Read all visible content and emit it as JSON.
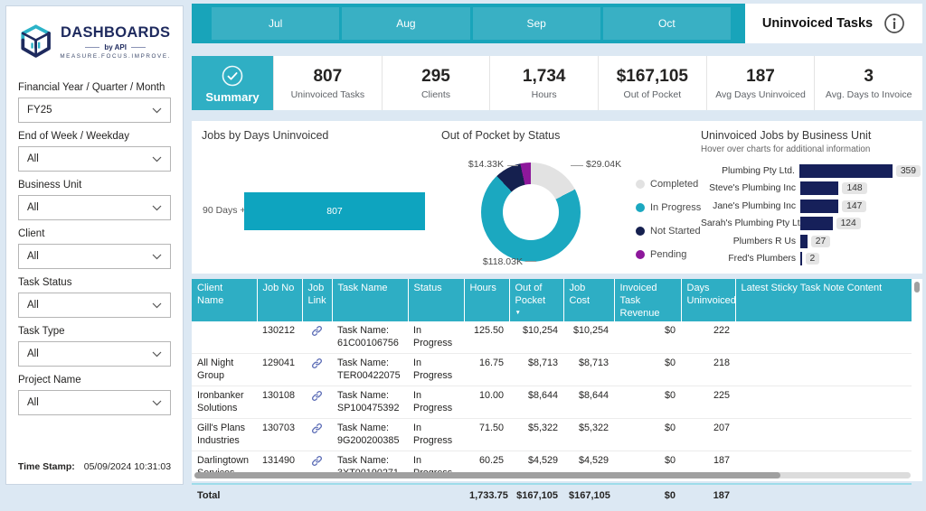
{
  "brand": {
    "title": "DASHBOARDS",
    "byline": "by API",
    "tagline": "MEASURE.FOCUS.IMPROVE."
  },
  "sidebar": {
    "filters": [
      {
        "label": "Financial Year / Quarter / Month",
        "value": "FY25"
      },
      {
        "label": "End of Week / Weekday",
        "value": "All"
      },
      {
        "label": "Business Unit",
        "value": "All"
      },
      {
        "label": "Client",
        "value": "All"
      },
      {
        "label": "Task Status",
        "value": "All"
      },
      {
        "label": "Task Type",
        "value": "All"
      },
      {
        "label": "Project Name",
        "value": "All"
      }
    ]
  },
  "timestamp": {
    "label": "Time Stamp:",
    "value": "05/09/2024 10:31:03"
  },
  "topbar": {
    "tabs": [
      "Jul",
      "Aug",
      "Sep",
      "Oct"
    ],
    "title": "Uninvoiced Tasks"
  },
  "kpis": {
    "summary_label": "Summary",
    "items": [
      {
        "value": "807",
        "label": "Uninvoiced Tasks"
      },
      {
        "value": "295",
        "label": "Clients"
      },
      {
        "value": "1,734",
        "label": "Hours"
      },
      {
        "value": "$167,105",
        "label": "Out of Pocket"
      },
      {
        "value": "187",
        "label": "Avg Days Uninvoiced"
      },
      {
        "value": "3",
        "label": "Avg. Days to Invoice"
      }
    ]
  },
  "chart_data": [
    {
      "type": "bar",
      "orientation": "horizontal",
      "title": "Jobs by Days Uninvoiced",
      "categories": [
        "90 Days +"
      ],
      "values": [
        807
      ],
      "bar_color": "#0ea4bf",
      "data_labels": "inside"
    },
    {
      "type": "donut",
      "title": "Out of Pocket by Status",
      "slices": [
        {
          "name": "Completed",
          "value": 29040,
          "display": "$29.04K",
          "color": "#e2e2e2"
        },
        {
          "name": "In Progress",
          "value": 118030,
          "display": "$118.03K",
          "color": "#1ba8c0"
        },
        {
          "name": "Not Started",
          "value": 14330,
          "display": "$14.33K",
          "color": "#15204f"
        },
        {
          "name": "Pending",
          "value": 5705,
          "display": "",
          "color": "#8d189b"
        }
      ],
      "legend_position": "right",
      "callouts_shown": [
        "$14.33K",
        "$29.04K",
        "$118.03K"
      ]
    },
    {
      "type": "bar",
      "orientation": "horizontal",
      "title": "Uninvoiced Jobs by Business Unit",
      "subtitle": "Hover over charts for additional information",
      "categories": [
        "Plumbing Pty Ltd.",
        "Steve's Plumbing Inc",
        "Jane's Plumbing Inc",
        "Sarah's Plumbing Pty Ltd.",
        "Plumbers R Us",
        "Fred's Plumbers"
      ],
      "values": [
        359,
        148,
        147,
        124,
        27,
        2
      ],
      "bar_color": "#16205a",
      "data_labels": "end-pill"
    }
  ],
  "table": {
    "columns": [
      "Client Name",
      "Job No",
      "Job Link",
      "Task Name",
      "Status",
      "Hours",
      "Out of Pocket",
      "Job Cost",
      "Invoiced Task Revenue",
      "Days Uninvoiced",
      "Latest Sticky Task Note Content"
    ],
    "sorted_column": "Out of Pocket",
    "rows": [
      {
        "client": "",
        "job_no": "130212",
        "job_link": true,
        "task": "Task Name: 61C00106756",
        "status": "In Progress",
        "hours": "125.50",
        "out_of_pocket": "$10,254",
        "job_cost": "$10,254",
        "invoiced_task_revenue": "$0",
        "days_uninvoiced": "222",
        "note": ""
      },
      {
        "client": "All Night Group",
        "job_no": "129041",
        "job_link": true,
        "task": "Task Name: TER00422075",
        "status": "In Progress",
        "hours": "16.75",
        "out_of_pocket": "$8,713",
        "job_cost": "$8,713",
        "invoiced_task_revenue": "$0",
        "days_uninvoiced": "218",
        "note": ""
      },
      {
        "client": "Ironbanker Solutions",
        "job_no": "130108",
        "job_link": true,
        "task": "Task Name: SP100475392",
        "status": "In Progress",
        "hours": "10.00",
        "out_of_pocket": "$8,644",
        "job_cost": "$8,644",
        "invoiced_task_revenue": "$0",
        "days_uninvoiced": "225",
        "note": ""
      },
      {
        "client": "Gill's Plans Industries",
        "job_no": "130703",
        "job_link": true,
        "task": "Task Name: 9G200200385",
        "status": "In Progress",
        "hours": "71.50",
        "out_of_pocket": "$5,322",
        "job_cost": "$5,322",
        "invoiced_task_revenue": "$0",
        "days_uninvoiced": "207",
        "note": ""
      },
      {
        "client": "Darlingtown Services",
        "job_no": "131490",
        "job_link": true,
        "task": "Task Name: 3XT00190271",
        "status": "In Progress",
        "hours": "60.25",
        "out_of_pocket": "$4,529",
        "job_cost": "$4,529",
        "invoiced_task_revenue": "$0",
        "days_uninvoiced": "187",
        "note": ""
      }
    ],
    "total": {
      "label": "Total",
      "hours": "1,733.75",
      "out_of_pocket": "$167,105",
      "job_cost": "$167,105",
      "invoiced_task_revenue": "$0",
      "days_uninvoiced": "187"
    }
  }
}
